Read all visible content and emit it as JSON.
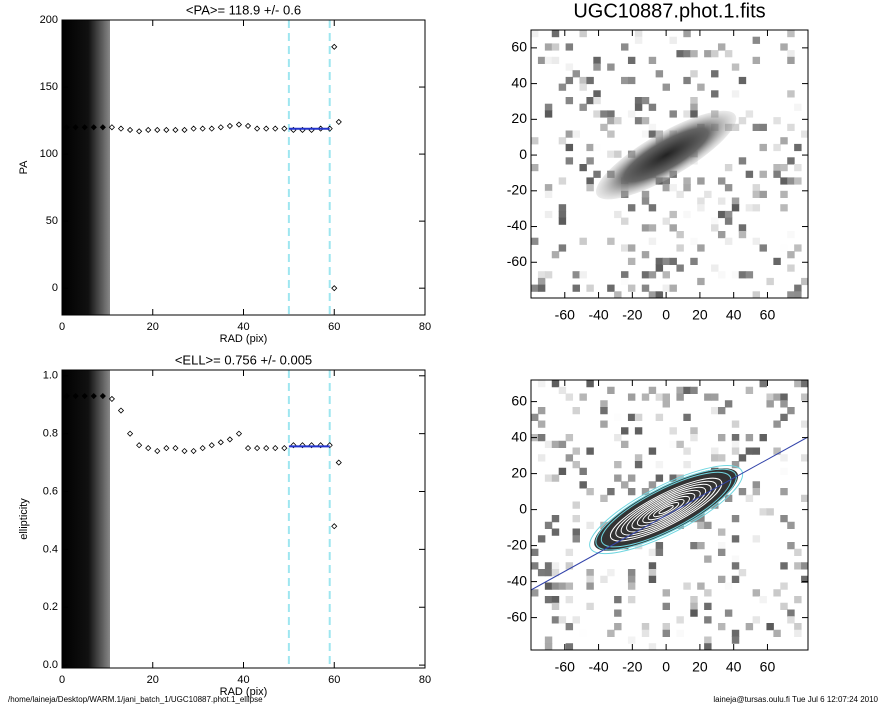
{
  "chart_data": [
    {
      "type": "scatter",
      "title": "<PA>= 118.9 +/-   0.6",
      "x_label": "RAD (pix)",
      "y_label": "PA",
      "xlim": [
        0,
        80
      ],
      "xticks": [
        0,
        20,
        40,
        60,
        80
      ],
      "ylim": [
        -20,
        200
      ],
      "yticks": [
        0,
        50,
        100,
        150,
        200
      ],
      "x": [
        1,
        3,
        5,
        7,
        9,
        11,
        13,
        15,
        17,
        19,
        21,
        23,
        25,
        27,
        29,
        31,
        33,
        35,
        37,
        39,
        41,
        43,
        45,
        47,
        49,
        51,
        53,
        55,
        57,
        59,
        60,
        60,
        61
      ],
      "values": [
        120,
        120,
        120,
        120,
        120,
        120,
        119,
        118,
        117,
        118,
        118,
        118,
        118,
        118,
        119,
        119,
        119,
        120,
        121,
        122,
        121,
        119,
        119,
        119,
        119,
        118,
        118,
        118,
        119,
        119,
        180,
        0,
        124
      ],
      "fit_x": [
        50,
        59
      ],
      "fit_y": [
        118.9,
        118.9
      ],
      "vlines": [
        50,
        59
      ]
    },
    {
      "type": "scatter",
      "title": "<ELL>= 0.756 +/-  0.005",
      "x_label": "RAD (pix)",
      "y_label": "ellipticity",
      "xlim": [
        0,
        80
      ],
      "xticks": [
        0,
        20,
        40,
        60,
        80
      ],
      "ylim": [
        -0.01,
        1.02
      ],
      "yticks": [
        {
          "value": 0,
          "label": "0.0"
        },
        0.2,
        0.4,
        0.6,
        0.8,
        {
          "value": 1,
          "label": "1.0"
        }
      ],
      "x": [
        1,
        3,
        5,
        7,
        9,
        11,
        13,
        15,
        17,
        19,
        21,
        23,
        25,
        27,
        29,
        31,
        33,
        35,
        37,
        39,
        41,
        43,
        45,
        47,
        49,
        51,
        53,
        55,
        57,
        59,
        60,
        61
      ],
      "values": [
        0.93,
        0.93,
        0.93,
        0.93,
        0.93,
        0.92,
        0.88,
        0.8,
        0.76,
        0.75,
        0.74,
        0.75,
        0.75,
        0.74,
        0.74,
        0.75,
        0.76,
        0.77,
        0.78,
        0.8,
        0.75,
        0.75,
        0.75,
        0.75,
        0.75,
        0.76,
        0.76,
        0.76,
        0.76,
        0.76,
        0.48,
        0.7
      ],
      "fit_x": [
        50,
        59
      ],
      "fit_y": [
        0.756,
        0.756
      ],
      "vlines": [
        50,
        59
      ]
    },
    {
      "type": "image",
      "title": "UGC10887.phot.1.fits",
      "xlim": [
        -80,
        84
      ],
      "xticks": [
        -60,
        -40,
        -20,
        0,
        20,
        40,
        60
      ],
      "ylim": [
        -80,
        70
      ],
      "yticks": [
        -60,
        -40,
        -20,
        0,
        20,
        40,
        60
      ]
    },
    {
      "type": "image",
      "xlim": [
        -80,
        84
      ],
      "xticks": [
        -60,
        -40,
        -20,
        0,
        20,
        40,
        60
      ],
      "ylim": [
        -78,
        72
      ],
      "yticks": [
        -60,
        -40,
        -20,
        0,
        20,
        40,
        60
      ]
    }
  ],
  "footer": {
    "path": "/home/laineja/Desktop/WARM.1/jani_batch_1/UGC10887.phot.1_ellipse",
    "user": "laineja@tursas.oulu.fi  Tue Jul  6 12:07:24 2010"
  }
}
